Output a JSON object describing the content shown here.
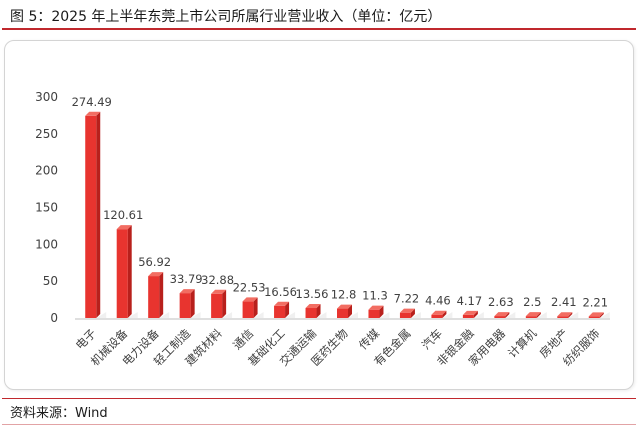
{
  "title": "图 5：2025 年上半年东莞上市公司所属行业营业收入（单位：亿元）",
  "source": "资料来源：Wind",
  "colors": {
    "bar_face": "#e8342f",
    "bar_top": "#f26d62",
    "bar_side": "#b8201c",
    "accent": "#c0282d",
    "axis": "#bfbfbf",
    "label": "#404040"
  },
  "chart_data": {
    "type": "bar",
    "title": "",
    "xlabel": "",
    "ylabel": "",
    "ylim": [
      0,
      300
    ],
    "yticks": [
      0,
      50,
      100,
      150,
      200,
      250,
      300
    ],
    "grid": false,
    "legend": "none",
    "categories": [
      "电子",
      "机械设备",
      "电力设备",
      "轻工制造",
      "建筑材料",
      "通信",
      "基础化工",
      "交通运输",
      "医药生物",
      "传媒",
      "有色金属",
      "汽车",
      "非银金融",
      "家用电器",
      "计算机",
      "房地产",
      "纺织服饰"
    ],
    "values": [
      274.49,
      120.61,
      56.92,
      33.79,
      32.88,
      22.53,
      16.56,
      13.56,
      12.8,
      11.3,
      7.22,
      4.46,
      4.17,
      2.63,
      2.5,
      2.41,
      2.21
    ],
    "data_labels": [
      "274.49",
      "120.61",
      "56.92",
      "33.79",
      "32.88",
      "22.53",
      "16.56",
      "13.56",
      "12.8",
      "11.3",
      "7.22",
      "4.46",
      "4.17",
      "2.63",
      "2.5",
      "2.41",
      "2.21"
    ]
  }
}
